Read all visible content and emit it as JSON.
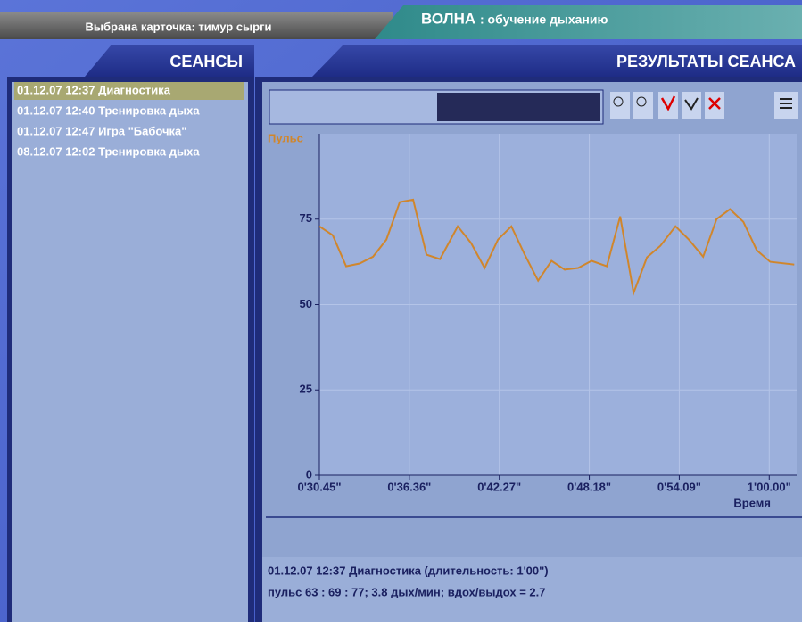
{
  "header": {
    "selected_card": "Выбрана карточка: тимур сырги",
    "app_name": "ВОЛНА",
    "app_subtitle": ": обучение дыханию"
  },
  "sessions": {
    "title": "СЕАНСЫ",
    "items": [
      "01.12.07 12:37 Диагностика",
      "01.12.07 12:40 Тренировка дыха",
      "01.12.07 12:47 Игра \"Бабочка\"",
      "08.12.07 12:02 Тренировка дыха"
    ],
    "selected": 0
  },
  "results": {
    "title": "РЕЗУЛЬТАТЫ СЕАНСА",
    "summary": [
      "01.12.07 12:37  Диагностика (длительность: 1'00\")",
      "пульс 63 : 69 : 77; 3.8 дых/мин; вдох/выдох = 2.7"
    ]
  },
  "chart_data": {
    "type": "line",
    "y_label": "Пульс",
    "x_label": "Время",
    "color": "#d0862c",
    "grid": true,
    "x": [
      30.45,
      31.33,
      32.21,
      33.09,
      33.97,
      34.85,
      35.73,
      36.61,
      37.49,
      38.37,
      39.54,
      40.42,
      41.3,
      42.18,
      43.06,
      43.94,
      44.82,
      45.7,
      46.57,
      47.45,
      48.33,
      49.33,
      50.21,
      51.09,
      51.97,
      52.85,
      53.84,
      54.72,
      55.66,
      56.54,
      57.42,
      58.3,
      59.18,
      60.06,
      61.64
    ],
    "values": [
      72.9,
      70.3,
      61.2,
      62,
      64,
      69,
      80,
      80.7,
      64.6,
      63.3,
      72.9,
      68,
      60.7,
      69,
      72.9,
      64.6,
      57,
      62.8,
      60.2,
      60.7,
      62.8,
      61.2,
      75.8,
      53.4,
      63.8,
      67.2,
      72.9,
      69,
      64,
      75,
      77.9,
      74.2,
      65.9,
      62.5,
      61.7
    ],
    "xlim": [
      30.45,
      61.8
    ],
    "ylim": [
      0,
      100
    ],
    "xticks": [
      {
        "value": 30.45,
        "label": "0'30.45\""
      },
      {
        "value": 36.36,
        "label": "0'36.36\""
      },
      {
        "value": 42.27,
        "label": "0'42.27\""
      },
      {
        "value": 48.18,
        "label": "0'48.18\""
      },
      {
        "value": 54.09,
        "label": "0'54.09\""
      },
      {
        "value": 60.0,
        "label": "1'00.00\""
      }
    ],
    "yticks": [
      0,
      25,
      50,
      75
    ]
  }
}
